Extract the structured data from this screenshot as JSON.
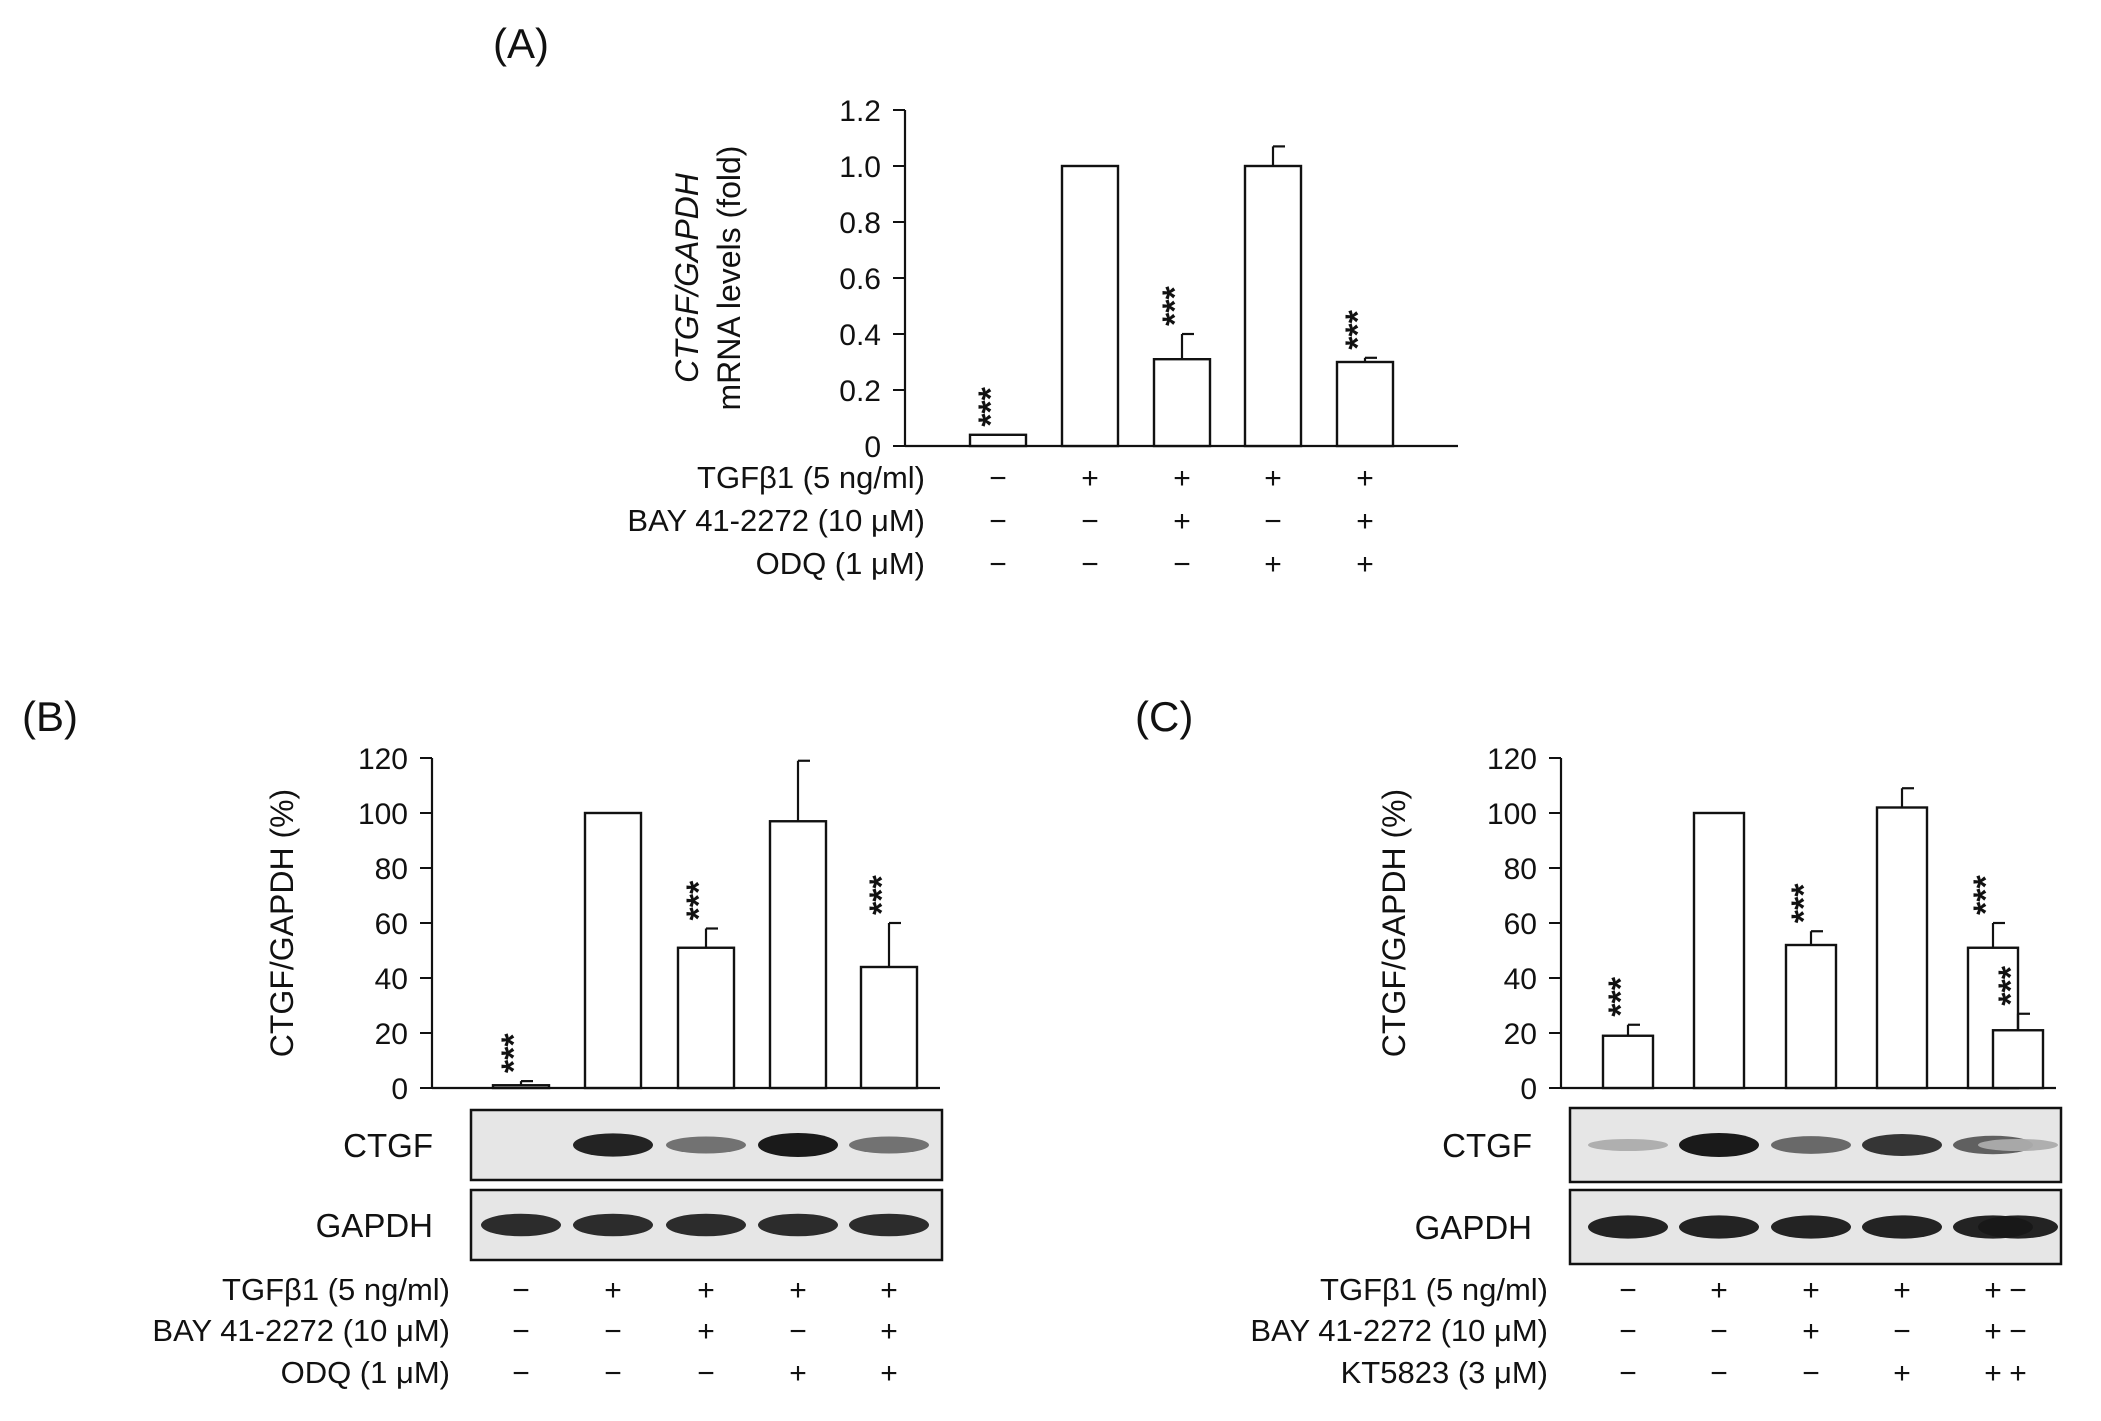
{
  "chart_data": [
    {
      "id": "A",
      "panel_label": "(A)",
      "type": "bar",
      "ylabel_italic": "CTGF/GAPDH",
      "ylabel": "mRNA levels (fold)",
      "ylim": [
        0,
        1.2
      ],
      "yticks": [
        "0",
        "0.2",
        "0.4",
        "0.6",
        "0.8",
        "1.0",
        "1.2"
      ],
      "values": [
        0.04,
        1.0,
        0.31,
        1.0,
        0.3
      ],
      "errors": [
        0.0,
        0.0,
        0.09,
        0.07,
        0.015
      ],
      "stars": [
        "***",
        "",
        "***",
        "",
        "***"
      ],
      "conditions": [
        {
          "label": "TGFβ1 (5 ng/ml)",
          "signs": [
            "−",
            "+",
            "+",
            "+",
            "+"
          ]
        },
        {
          "label": "BAY 41-2272 (10 μM)",
          "signs": [
            "−",
            "−",
            "+",
            "−",
            "+"
          ]
        },
        {
          "label": "ODQ (1 μM)",
          "signs": [
            "−",
            "−",
            "−",
            "+",
            "+"
          ]
        }
      ]
    },
    {
      "id": "B",
      "panel_label": "(B)",
      "type": "bar",
      "ylabel": "CTGF/GAPDH (%)",
      "ylim": [
        0,
        120
      ],
      "yticks": [
        "0",
        "20",
        "40",
        "60",
        "80",
        "100",
        "120"
      ],
      "values": [
        1,
        100,
        51,
        97,
        44
      ],
      "errors": [
        1.5,
        0,
        7,
        22,
        16
      ],
      "stars": [
        "***",
        "",
        "***",
        "",
        "***"
      ],
      "blots": [
        {
          "label": "CTGF",
          "intensities": [
            0.0,
            0.95,
            0.5,
            1.0,
            0.5
          ]
        },
        {
          "label": "GAPDH",
          "intensities": [
            0.9,
            0.9,
            0.9,
            0.9,
            0.9
          ]
        }
      ],
      "conditions": [
        {
          "label": "TGFβ1 (5 ng/ml)",
          "signs": [
            "−",
            "+",
            "+",
            "+",
            "+"
          ]
        },
        {
          "label": "BAY 41-2272 (10 μM)",
          "signs": [
            "−",
            "−",
            "+",
            "−",
            "+"
          ]
        },
        {
          "label": "ODQ (1 μM)",
          "signs": [
            "−",
            "−",
            "−",
            "+",
            "+"
          ]
        }
      ]
    },
    {
      "id": "C",
      "panel_label": "(C)",
      "type": "bar",
      "ylabel": "CTGF/GAPDH (%)",
      "ylim": [
        0,
        120
      ],
      "yticks": [
        "0",
        "20",
        "40",
        "60",
        "80",
        "100",
        "120"
      ],
      "values": [
        19,
        100,
        52,
        102,
        51,
        21
      ],
      "errors": [
        4,
        0,
        5,
        7,
        9,
        6
      ],
      "stars": [
        "***",
        "",
        "***",
        "",
        "***",
        "***"
      ],
      "blots": [
        {
          "label": "CTGF",
          "intensities": [
            0.15,
            1.0,
            0.55,
            0.85,
            0.6,
            0.15
          ]
        },
        {
          "label": "GAPDH",
          "intensities": [
            0.95,
            0.95,
            0.95,
            0.95,
            0.95,
            0.95
          ]
        }
      ],
      "conditions": [
        {
          "label": "TGFβ1 (5 ng/ml)",
          "signs": [
            "−",
            "+",
            "+",
            "+",
            "+",
            "−"
          ]
        },
        {
          "label": "BAY 41-2272 (10 μM)",
          "signs": [
            "−",
            "−",
            "+",
            "−",
            "+",
            "−"
          ]
        },
        {
          "label": "KT5823 (3 μM)",
          "signs": [
            "−",
            "−",
            "−",
            "+",
            "+",
            "+"
          ]
        }
      ]
    }
  ]
}
